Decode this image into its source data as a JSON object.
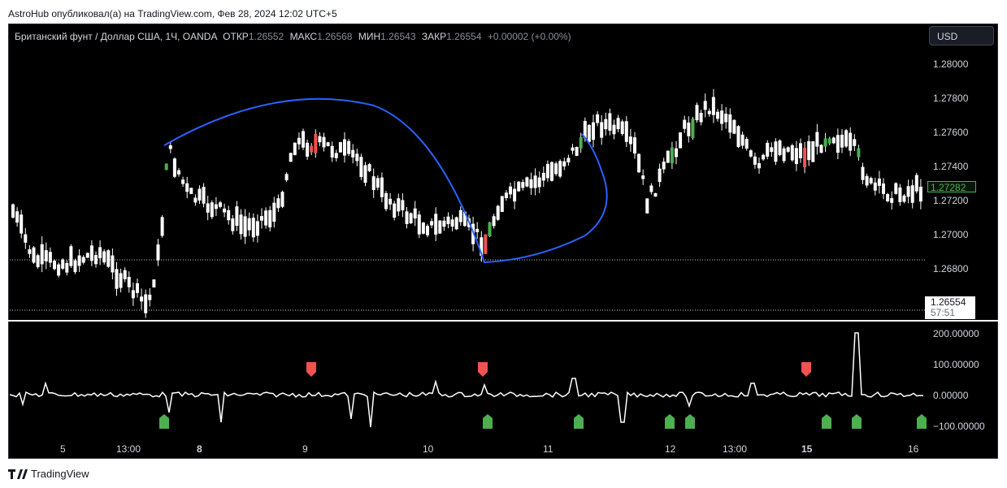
{
  "header": {
    "publisher_line": "AstroHub опубликовал(а) на TradingView.com, Фев 28, 2024 12:02 UTC+5"
  },
  "symbol": {
    "description": "Британский фунт / Доллар США, 1Ч, OANDA",
    "open_label": "ОТКР",
    "open": "1.26552",
    "high_label": "МАКС",
    "high": "1.26568",
    "low_label": "МИН",
    "low": "1.26543",
    "close_label": "ЗАКР",
    "close": "1.26554",
    "change": "+0.00002 (+0.00%)"
  },
  "currency_button": "USD",
  "price_axis": [
    "1.28000",
    "1.27800",
    "1.27600",
    "1.27400",
    "1.27200",
    "1.27000",
    "1.26800"
  ],
  "current_price_tag": "1.27282",
  "last_price": {
    "value": "1.26554",
    "countdown": "57:51"
  },
  "indicator_axis": [
    "200.00000",
    "100.00000",
    "0.00000",
    "−100.00000"
  ],
  "time_axis": [
    {
      "label": "5",
      "bold": false
    },
    {
      "label": "13:00",
      "bold": false
    },
    {
      "label": "8",
      "bold": true
    },
    {
      "label": "9",
      "bold": false
    },
    {
      "label": "10",
      "bold": false
    },
    {
      "label": "11",
      "bold": false
    },
    {
      "label": "12",
      "bold": false
    },
    {
      "label": "13:00",
      "bold": false
    },
    {
      "label": "15",
      "bold": true
    },
    {
      "label": "16",
      "bold": false
    }
  ],
  "footer": {
    "brand": "TradingView"
  },
  "colors": {
    "bull": "#ffffff",
    "bear": "#ffffff",
    "signal_up": "#4caf50",
    "signal_down": "#f05350",
    "curve": "#2962ff",
    "tag_green": "#4caf50"
  }
}
